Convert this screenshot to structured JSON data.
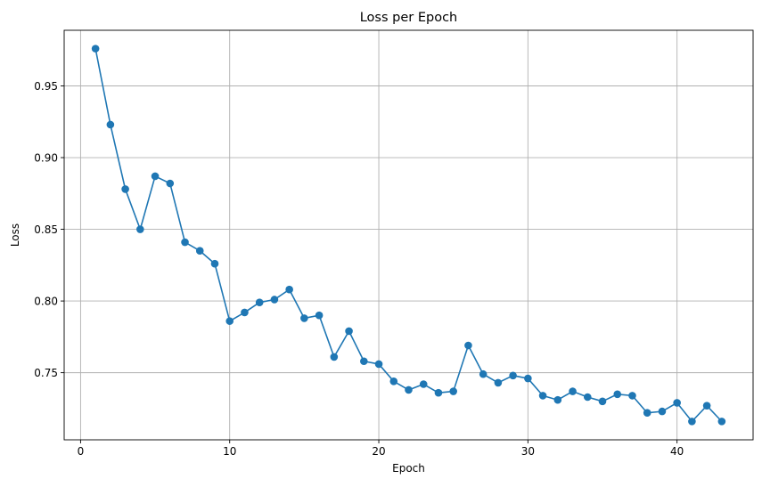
{
  "chart_data": {
    "type": "line",
    "title": "Loss per Epoch",
    "xlabel": "Epoch",
    "ylabel": "Loss",
    "grid": true,
    "xlim": [
      -1.1,
      45.1
    ],
    "ylim": [
      0.7032,
      0.9888
    ],
    "xticks": [
      0,
      10,
      20,
      30,
      40
    ],
    "yticks": [
      0.75,
      0.8,
      0.85,
      0.9,
      0.95
    ],
    "ytick_labels": [
      "0.75",
      "0.80",
      "0.85",
      "0.90",
      "0.95"
    ],
    "series": [
      {
        "color": "#1f77b4",
        "marker": "circle",
        "x": [
          1,
          2,
          3,
          4,
          5,
          6,
          7,
          8,
          9,
          10,
          11,
          12,
          13,
          14,
          15,
          16,
          17,
          18,
          19,
          20,
          21,
          22,
          23,
          24,
          25,
          26,
          27,
          28,
          29,
          30,
          31,
          32,
          33,
          34,
          35,
          36,
          37,
          38,
          39,
          40,
          41,
          42,
          43
        ],
        "y": [
          0.976,
          0.923,
          0.878,
          0.85,
          0.887,
          0.882,
          0.841,
          0.835,
          0.826,
          0.786,
          0.792,
          0.799,
          0.801,
          0.808,
          0.788,
          0.79,
          0.761,
          0.779,
          0.758,
          0.756,
          0.744,
          0.738,
          0.742,
          0.736,
          0.737,
          0.769,
          0.749,
          0.743,
          0.748,
          0.746,
          0.734,
          0.731,
          0.737,
          0.733,
          0.73,
          0.735,
          0.734,
          0.722,
          0.723,
          0.729,
          0.716,
          0.727,
          0.716
        ]
      }
    ]
  }
}
